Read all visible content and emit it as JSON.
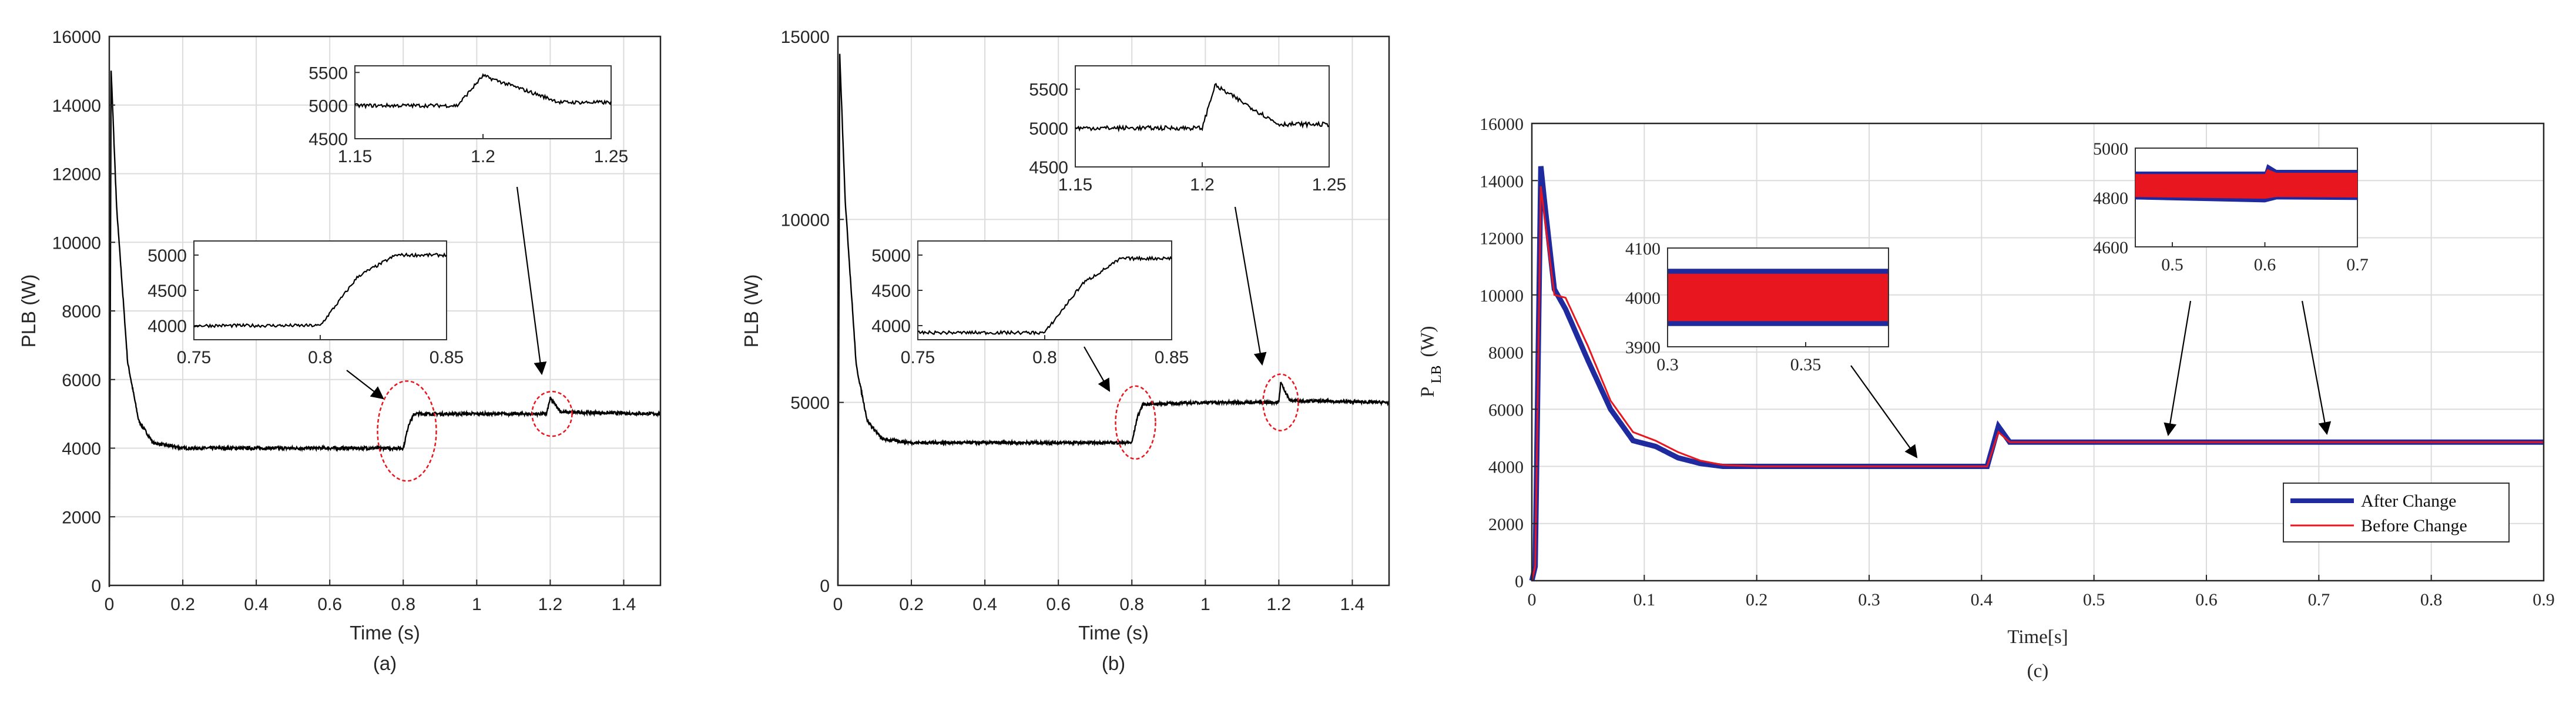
{
  "chart_data": [
    {
      "type": "line",
      "panel": "(a)",
      "xlabel": "Time (s)",
      "ylabel": "PLB (W)",
      "xlim": [
        0,
        1.5
      ],
      "ylim": [
        0,
        16000
      ],
      "xticks": [
        "0",
        "0.2",
        "0.4",
        "0.6",
        "0.8",
        "1",
        "1.2",
        "1.4"
      ],
      "yticks": [
        "0",
        "2000",
        "4000",
        "6000",
        "8000",
        "10000",
        "12000",
        "14000",
        "16000"
      ],
      "grid": true,
      "series": [
        {
          "name": "PLB",
          "color": "#000000",
          "x": [
            0,
            0.005,
            0.02,
            0.05,
            0.08,
            0.12,
            0.2,
            0.4,
            0.6,
            0.78,
            0.8,
            0.815,
            0.83,
            1.0,
            1.19,
            1.2,
            1.23,
            1.5
          ],
          "y": [
            0,
            15000,
            11000,
            6500,
            4800,
            4150,
            4000,
            4000,
            4000,
            4000,
            4000,
            4700,
            5000,
            5000,
            5000,
            5450,
            5050,
            5000
          ]
        }
      ],
      "insets": [
        {
          "xlim": [
            0.75,
            0.85
          ],
          "ylim": [
            3800,
            5200
          ],
          "xticks": [
            "0.75",
            "0.8",
            "0.85"
          ],
          "yticks": [
            "4000",
            "4500",
            "5000"
          ]
        },
        {
          "xlim": [
            1.15,
            1.25
          ],
          "ylim": [
            4500,
            5600
          ],
          "xticks": [
            "1.15",
            "1.2",
            "1.25"
          ],
          "yticks": [
            "4500",
            "5000",
            "5500"
          ]
        }
      ]
    },
    {
      "type": "line",
      "panel": "(b)",
      "xlabel": "Time (s)",
      "ylabel": "PLB (W)",
      "xlim": [
        0,
        1.5
      ],
      "ylim": [
        0,
        15000
      ],
      "xticks": [
        "0",
        "0.2",
        "0.4",
        "0.6",
        "0.8",
        "1",
        "1.2",
        "1.4"
      ],
      "yticks": [
        "0",
        "5000",
        "10000",
        "15000"
      ],
      "grid": true,
      "series": [
        {
          "name": "PLB",
          "color": "#000000",
          "x": [
            0,
            0.005,
            0.02,
            0.05,
            0.08,
            0.12,
            0.2,
            0.4,
            0.6,
            0.79,
            0.8,
            0.815,
            0.83,
            1.0,
            1.2,
            1.205,
            1.23,
            1.5
          ],
          "y": [
            0,
            14500,
            10500,
            6000,
            4500,
            4000,
            3900,
            3900,
            3900,
            3900,
            3900,
            4600,
            4950,
            5000,
            5000,
            5550,
            5050,
            5000
          ]
        }
      ],
      "insets": [
        {
          "xlim": [
            0.75,
            0.85
          ],
          "ylim": [
            3800,
            5200
          ],
          "xticks": [
            "0.75",
            "0.8",
            "0.85"
          ],
          "yticks": [
            "4000",
            "4500",
            "5000"
          ]
        },
        {
          "xlim": [
            1.15,
            1.25
          ],
          "ylim": [
            4500,
            5800
          ],
          "xticks": [
            "1.15",
            "1.2",
            "1.25"
          ],
          "yticks": [
            "4500",
            "5000",
            "5500"
          ]
        }
      ]
    },
    {
      "type": "line",
      "panel": "(c)",
      "xlabel": "Time[s]",
      "ylabel_main": "P",
      "ylabel_sub": "LB",
      "ylabel_unit": "(W)",
      "xlim": [
        0,
        0.9
      ],
      "ylim": [
        0,
        16000
      ],
      "xticks": [
        "0",
        "0.1",
        "0.2",
        "0.3",
        "0.4",
        "0.5",
        "0.6",
        "0.7",
        "0.8",
        "0.9"
      ],
      "yticks": [
        "0",
        "2000",
        "4000",
        "6000",
        "8000",
        "10000",
        "12000",
        "14000",
        "16000"
      ],
      "grid": true,
      "legend_position": "bottom-right",
      "series": [
        {
          "name": "After Change",
          "color": "#1f2a9e",
          "x": [
            0,
            0.003,
            0.008,
            0.012,
            0.02,
            0.03,
            0.05,
            0.07,
            0.09,
            0.11,
            0.13,
            0.15,
            0.17,
            0.2,
            0.3,
            0.405,
            0.415,
            0.425,
            0.5,
            0.6,
            0.7,
            0.8,
            0.9
          ],
          "y": [
            0,
            500,
            14500,
            13000,
            10200,
            9500,
            7700,
            6000,
            4900,
            4700,
            4300,
            4100,
            4000,
            4000,
            4000,
            4000,
            5400,
            4850,
            4850,
            4850,
            4850,
            4850,
            4850
          ]
        },
        {
          "name": "Before Change",
          "color": "#e8161e",
          "x": [
            0,
            0.003,
            0.008,
            0.012,
            0.02,
            0.03,
            0.05,
            0.07,
            0.09,
            0.11,
            0.13,
            0.15,
            0.17,
            0.2,
            0.3,
            0.405,
            0.415,
            0.425,
            0.5,
            0.6,
            0.7,
            0.8,
            0.9
          ],
          "y": [
            0,
            500,
            13800,
            12500,
            10000,
            9900,
            8200,
            6300,
            5200,
            4900,
            4500,
            4200,
            4050,
            4000,
            4000,
            4000,
            5200,
            4850,
            4850,
            4850,
            4850,
            4850,
            4850
          ]
        }
      ],
      "insets": [
        {
          "xlim": [
            0.3,
            0.38
          ],
          "ylim": [
            3900,
            4100
          ],
          "xticks": [
            "0.3",
            "0.35"
          ],
          "yticks": [
            "3900",
            "4000",
            "4100"
          ]
        },
        {
          "xlim": [
            0.46,
            0.7
          ],
          "ylim": [
            4600,
            5000
          ],
          "xticks": [
            "0.5",
            "0.6",
            "0.7"
          ],
          "yticks": [
            "4600",
            "4800",
            "5000"
          ]
        }
      ]
    }
  ]
}
